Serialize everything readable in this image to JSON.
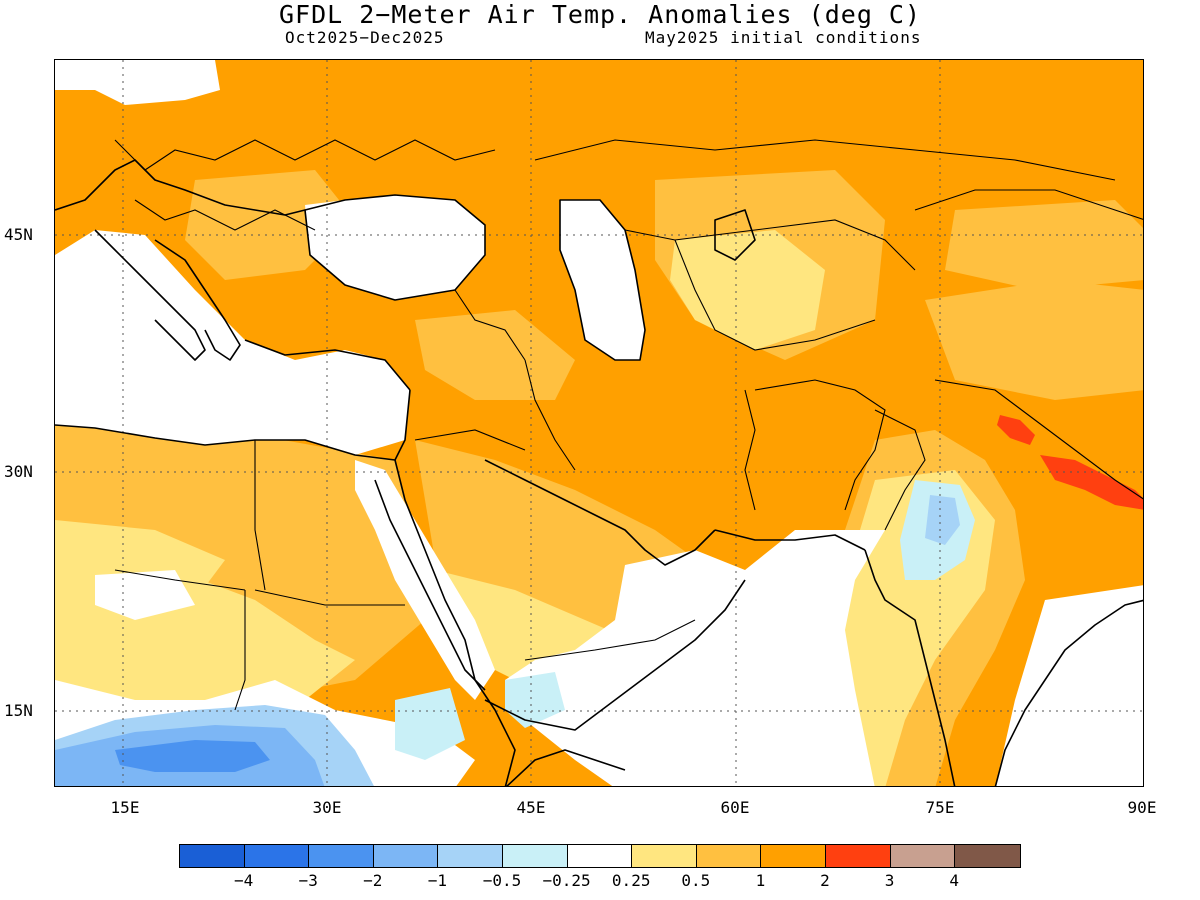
{
  "title": "GFDL 2−Meter Air Temp. Anomalies (deg C)",
  "subtitle_left": "Oct2025−Dec2025",
  "subtitle_right": "May2025 initial conditions",
  "latitude_labels": [
    "45N",
    "30N",
    "15N"
  ],
  "longitude_labels": [
    "15E",
    "30E",
    "45E",
    "60E",
    "75E",
    "90E"
  ],
  "colorbar": {
    "colors": [
      "#1a5fd6",
      "#2b74e8",
      "#4b93f0",
      "#7cb6f5",
      "#a6d3f7",
      "#c9f0f7",
      "#ffffff",
      "#ffe680",
      "#ffc040",
      "#ffa000",
      "#ff4010",
      "#c8a090",
      "#805848"
    ],
    "labels": [
      "−4",
      "−3",
      "−2",
      "−1",
      "−0.5",
      "−0.25",
      "0.25",
      "0.5",
      "1",
      "2",
      "3",
      "4"
    ]
  },
  "palette": {
    "cold_strong": "#4b93f0",
    "cold_medium": "#7cb6f5",
    "cold_weak": "#a6d3f7",
    "cold_faint": "#c9f0f7",
    "neutral": "#ffffff",
    "warm_faint": "#ffe680",
    "warm_weak": "#ffc040",
    "warm_medium": "#ffa000",
    "warm_strong": "#ff4010"
  }
}
